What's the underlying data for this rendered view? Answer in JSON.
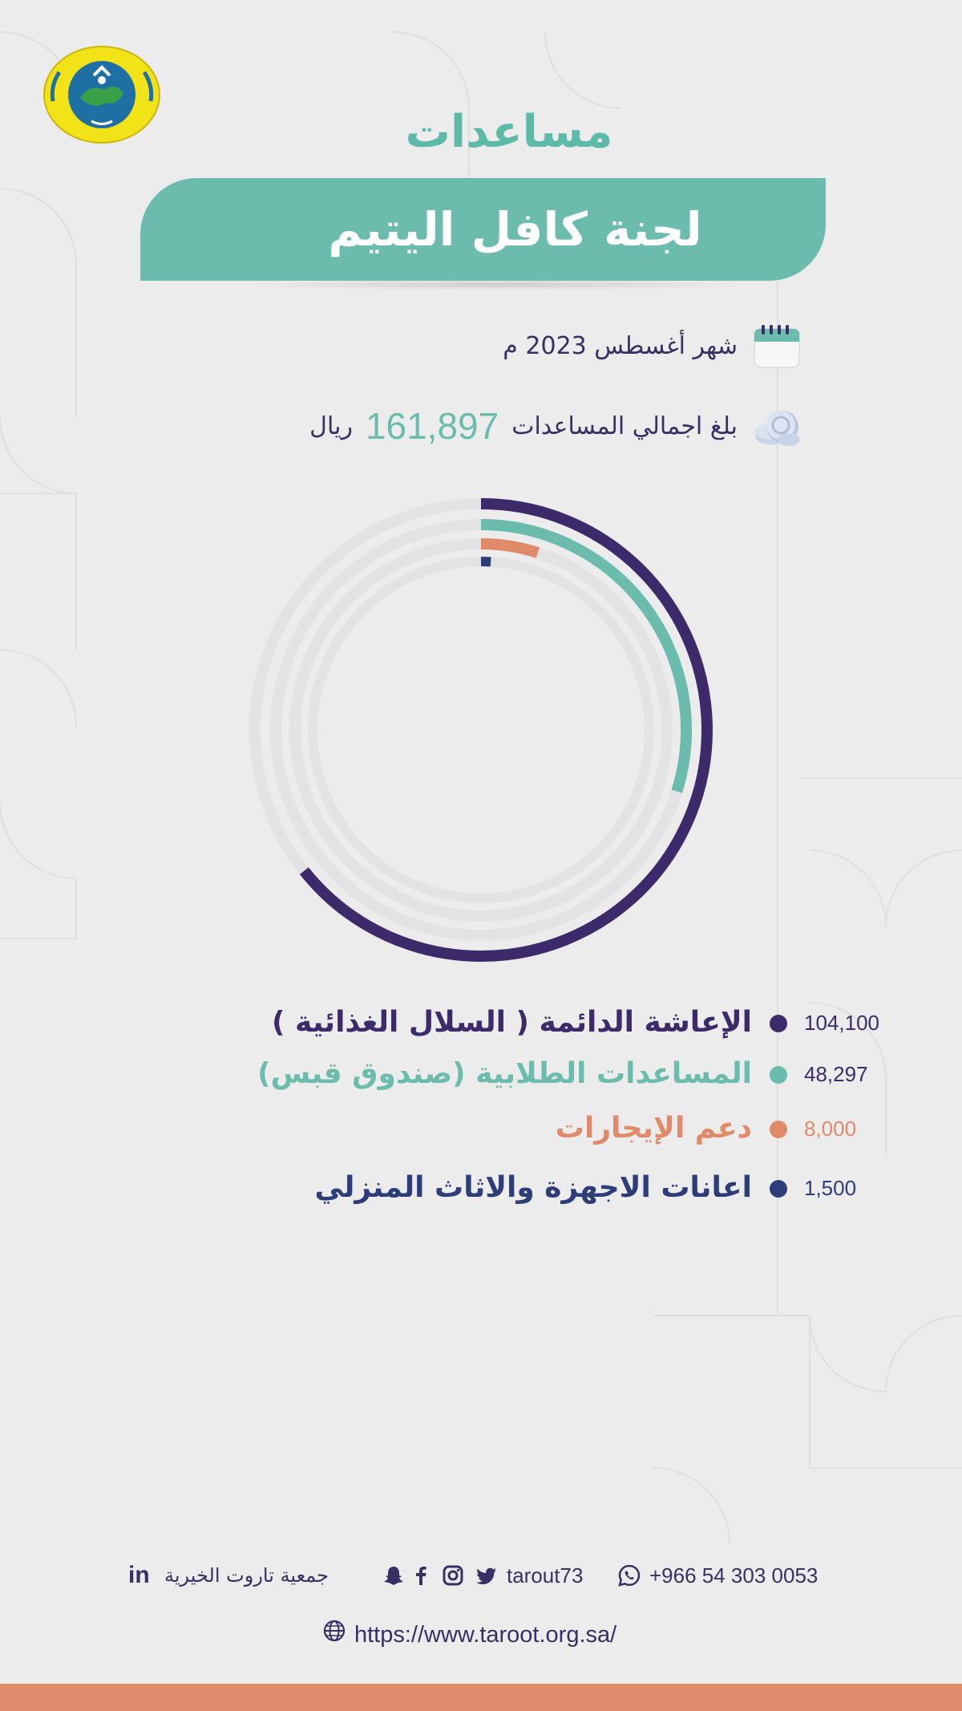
{
  "header": {
    "title": "مساعدات",
    "subtitle": "لجنة كافل اليتيم"
  },
  "info": {
    "month": "شهر أغسطس 2023 م",
    "total_prefix": "بلغ اجمالي المساعدات",
    "total_value": "161,897",
    "total_unit": "ريال",
    "calendar_icon": "calendar-icon",
    "coins_icon": "coins-icon"
  },
  "chart_data": {
    "type": "radial-bar",
    "categories": [
      "الإعاشة الدائمة ( السلال الغذائية )",
      "المساعدات الطلابية (صندوق قبس)",
      "دعم الإيجارات",
      "اعانات الاجهزة والاثاث المنزلي"
    ],
    "values": [
      104100,
      48297,
      8000,
      1500
    ],
    "labels": [
      "104,100",
      "48,297",
      "8,000",
      "1,500"
    ],
    "colors": [
      "#3d2a6a",
      "#6bbcad",
      "#e18a6a",
      "#2c3d7a"
    ],
    "max": 161897
  },
  "footer": {
    "linkedin_icon": "linkedin-icon",
    "org_name": "جمعية تاروت الخيرية",
    "handle": "tarout73",
    "phone": "+966 54 303 0053",
    "url": "https://www.taroot.org.sa/"
  }
}
